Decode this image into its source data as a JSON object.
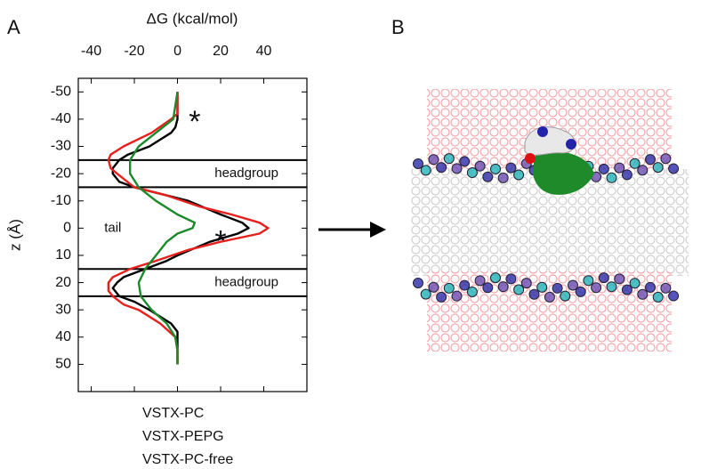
{
  "panels": [
    "A",
    "B"
  ],
  "chart_data": {
    "type": "line",
    "xlabel": "ΔG (kcal/mol)",
    "ylabel": "z (Å)",
    "xlim": [
      -46,
      60
    ],
    "xticks": [
      -40,
      -20,
      0,
      20,
      40
    ],
    "ylim": [
      -55,
      60
    ],
    "yticks": [
      -50,
      -40,
      -30,
      -20,
      -10,
      0,
      10,
      20,
      30,
      40,
      50
    ],
    "y_inverted": true,
    "hlines": [
      -25,
      -15,
      15,
      25
    ],
    "annotations": [
      {
        "text": "headgroup",
        "x": 32,
        "z": -20
      },
      {
        "text": "headgroup",
        "x": 32,
        "z": 20
      },
      {
        "text": "tail",
        "x": -30,
        "z": 0
      },
      {
        "text": "*",
        "x": 8,
        "z": -41
      },
      {
        "text": "*",
        "x": 20,
        "z": 3
      }
    ],
    "series": [
      {
        "name": "VSTX-PC",
        "color": "#000000",
        "z": [
          -50,
          -45,
          -40,
          -37,
          -35,
          -30,
          -27,
          -25,
          -22,
          -20,
          -17,
          -15,
          -12,
          -10,
          -5,
          -2,
          0,
          2,
          5,
          10,
          12,
          15,
          18,
          20,
          22,
          25,
          27,
          30,
          35,
          38,
          40,
          45,
          50
        ],
        "values": [
          0,
          0,
          0,
          -1,
          -3,
          -13,
          -23,
          -27,
          -30,
          -30,
          -27,
          -20,
          -5,
          5,
          20,
          30,
          33,
          28,
          15,
          0,
          -5,
          -15,
          -25,
          -28,
          -30,
          -27,
          -20,
          -13,
          -3,
          0,
          0,
          0,
          0
        ]
      },
      {
        "name": "VSTX-PEPG",
        "color": "#e8201c",
        "z": [
          -50,
          -45,
          -42,
          -40,
          -35,
          -30,
          -27,
          -25,
          -22,
          -20,
          -15,
          -12,
          -8,
          -5,
          -2,
          0,
          2,
          5,
          8,
          12,
          15,
          18,
          20,
          23,
          25,
          28,
          30,
          35,
          40,
          45,
          50
        ],
        "values": [
          0,
          0,
          0,
          -3,
          -12,
          -25,
          -31,
          -32,
          -31,
          -28,
          -20,
          -5,
          10,
          25,
          38,
          42,
          38,
          20,
          5,
          -10,
          -22,
          -30,
          -32,
          -32,
          -30,
          -25,
          -18,
          -8,
          -1,
          0,
          0
        ]
      },
      {
        "name": "VSTX-PC-free",
        "color": "#1a8a2a",
        "z": [
          -50,
          -40,
          -35,
          -30,
          -25,
          -20,
          -15,
          -10,
          -5,
          -2,
          0,
          2,
          5,
          10,
          15,
          20,
          25,
          30,
          35,
          40,
          45,
          50
        ],
        "values": [
          0,
          -2,
          -10,
          -18,
          -22,
          -22,
          -18,
          -10,
          0,
          8,
          7,
          0,
          -5,
          -10,
          -15,
          -18,
          -17,
          -12,
          -5,
          -1,
          0,
          0
        ]
      }
    ]
  }
}
